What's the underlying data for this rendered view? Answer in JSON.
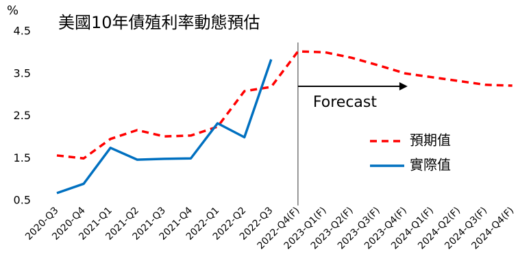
{
  "chart_data": {
    "type": "line",
    "title": "美國10年債殖利率動態預估",
    "y_unit": "%",
    "annotation": "Forecast",
    "categories": [
      "2020-Q3",
      "2020-Q4",
      "2021-Q1",
      "2021-Q2",
      "2021-Q3",
      "2021-Q4",
      "2022-Q1",
      "2022-Q2",
      "2022-Q3",
      "2022-Q4(F)",
      "2023-Q1(F)",
      "2023-Q2(F)",
      "2023-Q3(F)",
      "2023-Q4(F)",
      "2024-Q1(F)",
      "2024-Q2(F)",
      "2024-Q3(F)",
      "2024-Q4(F)"
    ],
    "series": [
      {
        "name": "預期值",
        "color": "#ff0000",
        "dashed": true,
        "values": [
          1.57,
          1.5,
          1.96,
          2.17,
          2.02,
          2.04,
          2.25,
          3.09,
          3.19,
          4.03,
          4.01,
          3.88,
          3.7,
          3.51,
          3.42,
          3.33,
          3.24,
          3.22
        ]
      },
      {
        "name": "實際值",
        "color": "#0070c0",
        "dashed": false,
        "values": [
          0.68,
          0.9,
          1.75,
          1.47,
          1.49,
          1.5,
          2.33,
          2.0,
          3.84,
          null,
          null,
          null,
          null,
          null,
          null,
          null,
          null,
          null
        ]
      }
    ],
    "ylim": [
      0.5,
      4.5
    ],
    "yticks": [
      0.5,
      1.5,
      2.5,
      3.5,
      4.5
    ],
    "grid": false
  }
}
